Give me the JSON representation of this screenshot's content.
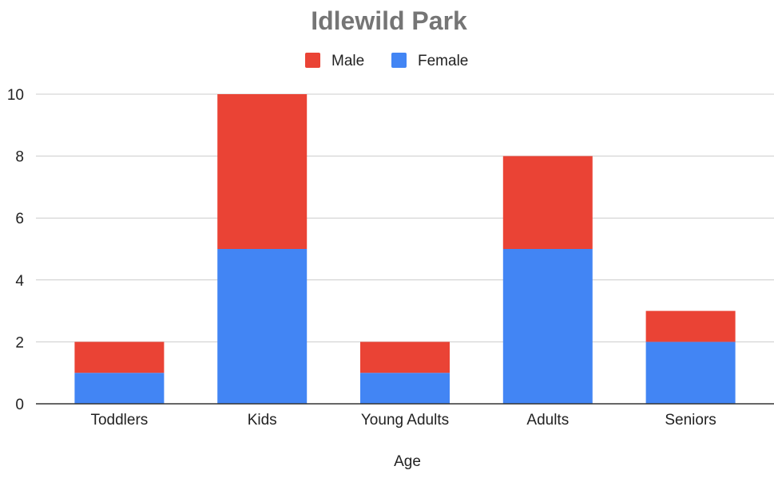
{
  "chart_data": {
    "type": "bar",
    "stacked": true,
    "title": "Idlewild Park",
    "xlabel": "Age",
    "ylabel": "",
    "categories": [
      "Toddlers",
      "Kids",
      "Young Adults",
      "Adults",
      "Seniors"
    ],
    "series": [
      {
        "name": "Female",
        "color": "#4285f4",
        "values": [
          1,
          5,
          1,
          5,
          2
        ]
      },
      {
        "name": "Male",
        "color": "#ea4335",
        "values": [
          1,
          5,
          1,
          3,
          1
        ]
      }
    ],
    "legend_order": [
      "Male",
      "Female"
    ],
    "legend_position": "top",
    "ylim": [
      0,
      10
    ],
    "yticks": [
      0,
      2,
      4,
      6,
      8,
      10
    ],
    "grid": true
  }
}
